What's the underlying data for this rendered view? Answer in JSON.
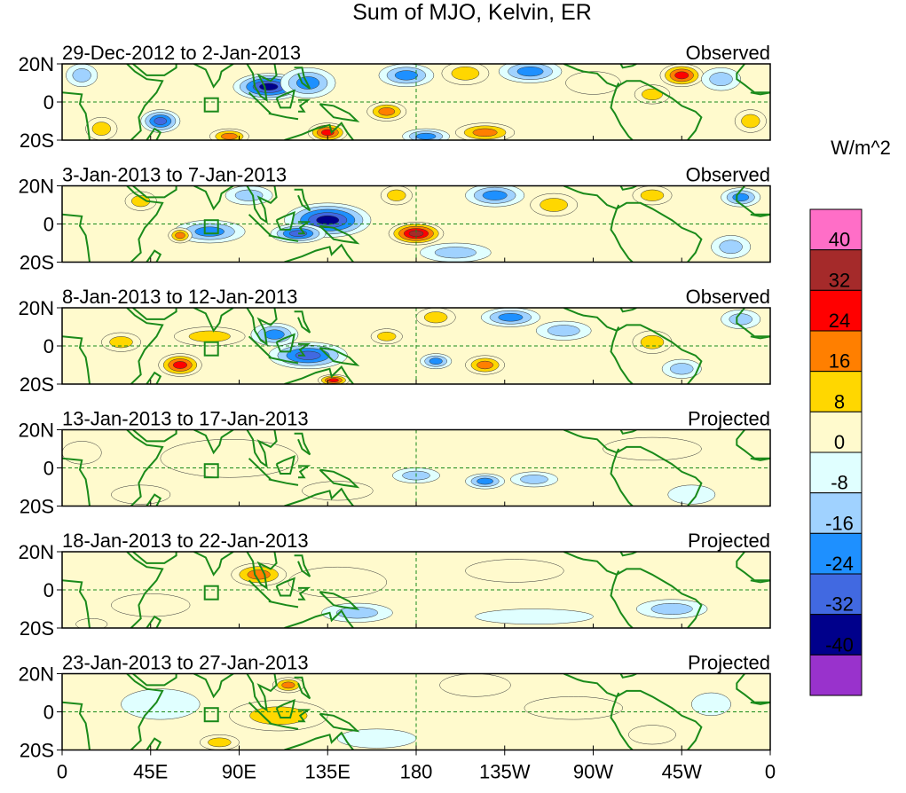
{
  "chart_data": {
    "type": "heatmap",
    "title": "Sum of MJO, Kelvin, ER",
    "units": "W/m^2",
    "x_ticks": [
      "0",
      "45E",
      "90E",
      "135E",
      "180",
      "135W",
      "90W",
      "45W",
      "0"
    ],
    "y_ticks": [
      "20N",
      "0",
      "20S"
    ],
    "x_range_deg": [
      0,
      360
    ],
    "y_range_deg": [
      -20,
      20
    ],
    "colorbar": {
      "levels": [
        "40",
        "32",
        "24",
        "16",
        "8",
        "0",
        "-8",
        "-16",
        "-24",
        "-32",
        "-40"
      ],
      "colors": [
        "#ff6ec7",
        "#a52a2a",
        "#ff0000",
        "#ff7f00",
        "#ffd700",
        "#fffacd",
        "#e0ffff",
        "#a0d2ff",
        "#1e90ff",
        "#4169e1",
        "#00008b",
        "#9932cc"
      ]
    },
    "panels": [
      {
        "period": "29-Dec-2012 to 2-Jan-2013",
        "label": "Observed",
        "anomalies": [
          {
            "lon": 105,
            "lat": 8,
            "rx": 18,
            "ry": 7,
            "v": -36
          },
          {
            "lon": 125,
            "lat": 10,
            "rx": 14,
            "ry": 8,
            "v": -22
          },
          {
            "lon": 50,
            "lat": -10,
            "rx": 10,
            "ry": 6,
            "v": -28
          },
          {
            "lon": 135,
            "lat": -16,
            "rx": 10,
            "ry": 5,
            "v": 30
          },
          {
            "lon": 85,
            "lat": -18,
            "rx": 10,
            "ry": 4,
            "v": 18
          },
          {
            "lon": 165,
            "lat": -5,
            "rx": 10,
            "ry": 5,
            "v": 20
          },
          {
            "lon": 215,
            "lat": -16,
            "rx": 15,
            "ry": 5,
            "v": 22
          },
          {
            "lon": 175,
            "lat": 14,
            "rx": 14,
            "ry": 6,
            "v": -18
          },
          {
            "lon": 238,
            "lat": 16,
            "rx": 16,
            "ry": 6,
            "v": -24
          },
          {
            "lon": 205,
            "lat": 15,
            "rx": 12,
            "ry": 6,
            "v": 16
          },
          {
            "lon": 315,
            "lat": 14,
            "rx": 11,
            "ry": 6,
            "v": 26
          },
          {
            "lon": 300,
            "lat": 4,
            "rx": 9,
            "ry": 5,
            "v": 12
          },
          {
            "lon": 335,
            "lat": 12,
            "rx": 10,
            "ry": 6,
            "v": -12
          },
          {
            "lon": 270,
            "lat": 10,
            "rx": 14,
            "ry": 6,
            "v": 6
          },
          {
            "lon": 20,
            "lat": -14,
            "rx": 8,
            "ry": 6,
            "v": 14
          },
          {
            "lon": 10,
            "lat": 14,
            "rx": 8,
            "ry": 6,
            "v": -14
          },
          {
            "lon": 185,
            "lat": -18,
            "rx": 12,
            "ry": 4,
            "v": -22
          },
          {
            "lon": 350,
            "lat": -10,
            "rx": 8,
            "ry": 6,
            "v": 10
          }
        ]
      },
      {
        "period": "3-Jan-2013 to 7-Jan-2013",
        "label": "Observed",
        "anomalies": [
          {
            "lon": 135,
            "lat": 2,
            "rx": 22,
            "ry": 9,
            "v": -36
          },
          {
            "lon": 120,
            "lat": -5,
            "rx": 14,
            "ry": 5,
            "v": -28
          },
          {
            "lon": 75,
            "lat": -4,
            "rx": 18,
            "ry": 6,
            "v": -20
          },
          {
            "lon": 180,
            "lat": -5,
            "rx": 14,
            "ry": 6,
            "v": 36
          },
          {
            "lon": 60,
            "lat": -6,
            "rx": 6,
            "ry": 4,
            "v": 20
          },
          {
            "lon": 220,
            "lat": 15,
            "rx": 15,
            "ry": 6,
            "v": -22
          },
          {
            "lon": 170,
            "lat": 15,
            "rx": 8,
            "ry": 5,
            "v": 14
          },
          {
            "lon": 250,
            "lat": 10,
            "rx": 12,
            "ry": 6,
            "v": 14
          },
          {
            "lon": 300,
            "lat": 15,
            "rx": 10,
            "ry": 5,
            "v": 14
          },
          {
            "lon": 345,
            "lat": 14,
            "rx": 10,
            "ry": 5,
            "v": -20
          },
          {
            "lon": 200,
            "lat": -15,
            "rx": 18,
            "ry": 5,
            "v": -12
          },
          {
            "lon": 340,
            "lat": -12,
            "rx": 10,
            "ry": 6,
            "v": -12
          },
          {
            "lon": 40,
            "lat": 12,
            "rx": 8,
            "ry": 5,
            "v": 12
          },
          {
            "lon": 95,
            "lat": 15,
            "rx": 12,
            "ry": 5,
            "v": -14
          }
        ]
      },
      {
        "period": "8-Jan-2013 to 12-Jan-2013",
        "label": "Observed",
        "anomalies": [
          {
            "lon": 60,
            "lat": -10,
            "rx": 11,
            "ry": 6,
            "v": 28
          },
          {
            "lon": 75,
            "lat": 5,
            "rx": 18,
            "ry": 5,
            "v": 16
          },
          {
            "lon": 125,
            "lat": -5,
            "rx": 20,
            "ry": 7,
            "v": -28
          },
          {
            "lon": 138,
            "lat": -18,
            "rx": 8,
            "ry": 3,
            "v": 30
          },
          {
            "lon": 108,
            "lat": 6,
            "rx": 12,
            "ry": 6,
            "v": -22
          },
          {
            "lon": 165,
            "lat": 5,
            "rx": 8,
            "ry": 4,
            "v": 16
          },
          {
            "lon": 190,
            "lat": -8,
            "rx": 8,
            "ry": 4,
            "v": -22
          },
          {
            "lon": 215,
            "lat": -10,
            "rx": 10,
            "ry": 5,
            "v": 18
          },
          {
            "lon": 190,
            "lat": 15,
            "rx": 10,
            "ry": 5,
            "v": 16
          },
          {
            "lon": 228,
            "lat": 15,
            "rx": 15,
            "ry": 5,
            "v": -18
          },
          {
            "lon": 300,
            "lat": 2,
            "rx": 10,
            "ry": 6,
            "v": 16
          },
          {
            "lon": 315,
            "lat": -12,
            "rx": 10,
            "ry": 5,
            "v": -16
          },
          {
            "lon": 30,
            "lat": 2,
            "rx": 10,
            "ry": 5,
            "v": 14
          },
          {
            "lon": 255,
            "lat": 8,
            "rx": 14,
            "ry": 5,
            "v": -10
          },
          {
            "lon": 345,
            "lat": 14,
            "rx": 10,
            "ry": 5,
            "v": -10
          }
        ]
      },
      {
        "period": "13-Jan-2013 to 17-Jan-2013",
        "label": "Projected",
        "anomalies": [
          {
            "lon": 85,
            "lat": 5,
            "rx": 35,
            "ry": 10,
            "v": 8
          },
          {
            "lon": 215,
            "lat": -7,
            "rx": 10,
            "ry": 4,
            "v": -22
          },
          {
            "lon": 180,
            "lat": -4,
            "rx": 12,
            "ry": 4,
            "v": -14
          },
          {
            "lon": 240,
            "lat": -6,
            "rx": 12,
            "ry": 4,
            "v": -12
          },
          {
            "lon": 140,
            "lat": -12,
            "rx": 18,
            "ry": 5,
            "v": 6
          },
          {
            "lon": 300,
            "lat": 10,
            "rx": 25,
            "ry": 6,
            "v": 5
          },
          {
            "lon": 40,
            "lat": -14,
            "rx": 15,
            "ry": 5,
            "v": 5
          },
          {
            "lon": 320,
            "lat": -14,
            "rx": 12,
            "ry": 5,
            "v": -6
          },
          {
            "lon": 10,
            "lat": 8,
            "rx": 10,
            "ry": 6,
            "v": 5
          }
        ]
      },
      {
        "period": "18-Jan-2013 to 22-Jan-2013",
        "label": "Projected",
        "anomalies": [
          {
            "lon": 100,
            "lat": 8,
            "rx": 14,
            "ry": 6,
            "v": 18
          },
          {
            "lon": 140,
            "lat": 4,
            "rx": 25,
            "ry": 8,
            "v": 8
          },
          {
            "lon": 150,
            "lat": -12,
            "rx": 18,
            "ry": 5,
            "v": -12
          },
          {
            "lon": 310,
            "lat": -10,
            "rx": 18,
            "ry": 5,
            "v": -14
          },
          {
            "lon": 45,
            "lat": -8,
            "rx": 20,
            "ry": 6,
            "v": 6
          },
          {
            "lon": 230,
            "lat": 10,
            "rx": 25,
            "ry": 6,
            "v": 6
          },
          {
            "lon": 240,
            "lat": -14,
            "rx": 30,
            "ry": 4,
            "v": -6
          },
          {
            "lon": 15,
            "lat": -18,
            "rx": 8,
            "ry": 3,
            "v": 8
          }
        ]
      },
      {
        "period": "23-Jan-2013 to 27-Jan-2013",
        "label": "Projected",
        "anomalies": [
          {
            "lon": 115,
            "lat": 14,
            "rx": 8,
            "ry": 4,
            "v": 18
          },
          {
            "lon": 110,
            "lat": -2,
            "rx": 25,
            "ry": 8,
            "v": 10
          },
          {
            "lon": 50,
            "lat": 4,
            "rx": 20,
            "ry": 8,
            "v": -6
          },
          {
            "lon": 160,
            "lat": -14,
            "rx": 20,
            "ry": 5,
            "v": -8
          },
          {
            "lon": 210,
            "lat": 14,
            "rx": 18,
            "ry": 6,
            "v": 8
          },
          {
            "lon": 300,
            "lat": -12,
            "rx": 12,
            "ry": 5,
            "v": 8
          },
          {
            "lon": 260,
            "lat": 2,
            "rx": 25,
            "ry": 6,
            "v": 4
          },
          {
            "lon": 330,
            "lat": 4,
            "rx": 10,
            "ry": 6,
            "v": -6
          },
          {
            "lon": 80,
            "lat": -16,
            "rx": 10,
            "ry": 4,
            "v": 10
          }
        ]
      }
    ]
  }
}
